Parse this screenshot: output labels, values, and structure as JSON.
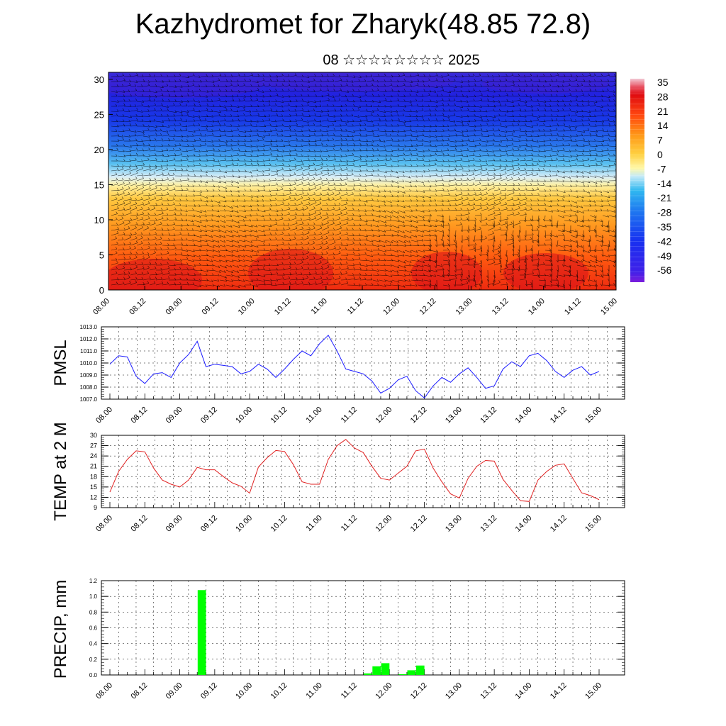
{
  "title": "Kazhydromet for Zharyk(48.85 72.8)",
  "subtitle": "08 ☆☆☆☆☆☆☆☆ 2025",
  "chart_data": [
    {
      "type": "heatmap",
      "ylim": [
        0,
        31
      ],
      "yticks": [
        "0",
        "5",
        "10",
        "15",
        "20",
        "25",
        "30"
      ],
      "xticks": [
        "08.00",
        "08.12",
        "09.00",
        "09.12",
        "10.00",
        "10.12",
        "11.00",
        "11.12",
        "12.00",
        "12.12",
        "13.00",
        "13.12",
        "14.00",
        "14.12",
        "15.00"
      ],
      "colorbar_labels": [
        "35",
        "28",
        "21",
        "14",
        "7",
        "0",
        "-7",
        "-14",
        "-21",
        "-28",
        "-35",
        "-42",
        "-49",
        "-56"
      ],
      "colors": [
        "#f2c4d0",
        "#e8101a",
        "#ff7a10",
        "#ffd040",
        "#fff8a0",
        "#c0e8f8",
        "#28a8f0",
        "#1030e0",
        "#7a20e0"
      ]
    },
    {
      "type": "line",
      "ylabel": "PMSL",
      "ylim": [
        1007.0,
        1013.0
      ],
      "yticks": [
        "1007.0",
        "1008.0",
        "1009.0",
        "1010.0",
        "1011.0",
        "1012.0",
        "1013.0"
      ],
      "xticks": [
        "08.00",
        "08.12",
        "09.00",
        "09.12",
        "10.00",
        "10.12",
        "11.00",
        "11.12",
        "12.00",
        "12.12",
        "13.00",
        "13.12",
        "14.00",
        "14.12",
        "15.00"
      ],
      "color": "#1a1aff",
      "values": [
        1009.9,
        1010.6,
        1010.5,
        1008.9,
        1008.3,
        1009.1,
        1009.2,
        1008.8,
        1010.0,
        1010.7,
        1011.8,
        1009.7,
        1009.9,
        1009.8,
        1009.7,
        1009.1,
        1009.3,
        1009.9,
        1009.5,
        1008.8,
        1009.5,
        1010.3,
        1011.0,
        1010.6,
        1011.6,
        1012.3,
        1011.0,
        1009.5,
        1009.3,
        1009.1,
        1008.5,
        1007.5,
        1007.9,
        1008.6,
        1008.9,
        1007.7,
        1007.1,
        1008.1,
        1008.8,
        1008.4,
        1009.1,
        1009.6,
        1008.8,
        1007.9,
        1008.1,
        1009.5,
        1010.1,
        1009.7,
        1010.6,
        1010.8,
        1010.2,
        1009.3,
        1008.8,
        1009.4,
        1009.7,
        1009.0,
        1009.3
      ]
    },
    {
      "type": "line",
      "ylabel": "TEMP at 2 M",
      "ylim": [
        9,
        30
      ],
      "yticks": [
        "9",
        "12",
        "15",
        "18",
        "21",
        "24",
        "27",
        "30"
      ],
      "xticks": [
        "08.00",
        "08.12",
        "09.00",
        "09.12",
        "10.00",
        "10.12",
        "11.00",
        "11.12",
        "12.00",
        "12.12",
        "13.00",
        "13.12",
        "14.00",
        "14.12",
        "15.00"
      ],
      "color": "#e02020",
      "values": [
        13.5,
        19.5,
        23.0,
        25.5,
        25.2,
        20.5,
        17.0,
        15.8,
        15.0,
        17.0,
        20.7,
        20.0,
        20.0,
        18.0,
        16.2,
        15.2,
        13.2,
        20.8,
        23.5,
        25.6,
        25.3,
        21.5,
        16.5,
        15.8,
        15.8,
        23.0,
        27.0,
        28.8,
        26.3,
        25.0,
        21.0,
        17.5,
        17.0,
        19.0,
        21.0,
        25.5,
        26.0,
        20.5,
        16.5,
        13.0,
        11.8,
        17.5,
        21.0,
        22.7,
        22.5,
        17.2,
        14.0,
        11.0,
        10.8,
        17.0,
        19.5,
        21.3,
        21.7,
        17.5,
        13.3,
        12.5,
        11.3
      ]
    },
    {
      "type": "bar",
      "ylabel": "PRECIP, mm",
      "ylim": [
        0,
        1.2
      ],
      "yticks": [
        "0.0",
        "0.2",
        "0.4",
        "0.6",
        "0.8",
        "1.0",
        "1.2"
      ],
      "xticks": [
        "08.00",
        "08.12",
        "09.00",
        "09.12",
        "10.00",
        "10.12",
        "11.00",
        "11.12",
        "12.00",
        "12.12",
        "13.00",
        "13.12",
        "14.00",
        "14.12",
        "15.00"
      ],
      "color": "#00ff00",
      "bars": [
        {
          "slot": 11,
          "value": 1.08
        },
        {
          "slot": 30,
          "value": 0.02
        },
        {
          "slot": 31,
          "value": 0.11
        },
        {
          "slot": 32,
          "value": 0.15
        },
        {
          "slot": 34,
          "value": 0.01
        },
        {
          "slot": 35,
          "value": 0.06
        },
        {
          "slot": 36,
          "value": 0.12
        }
      ]
    }
  ]
}
